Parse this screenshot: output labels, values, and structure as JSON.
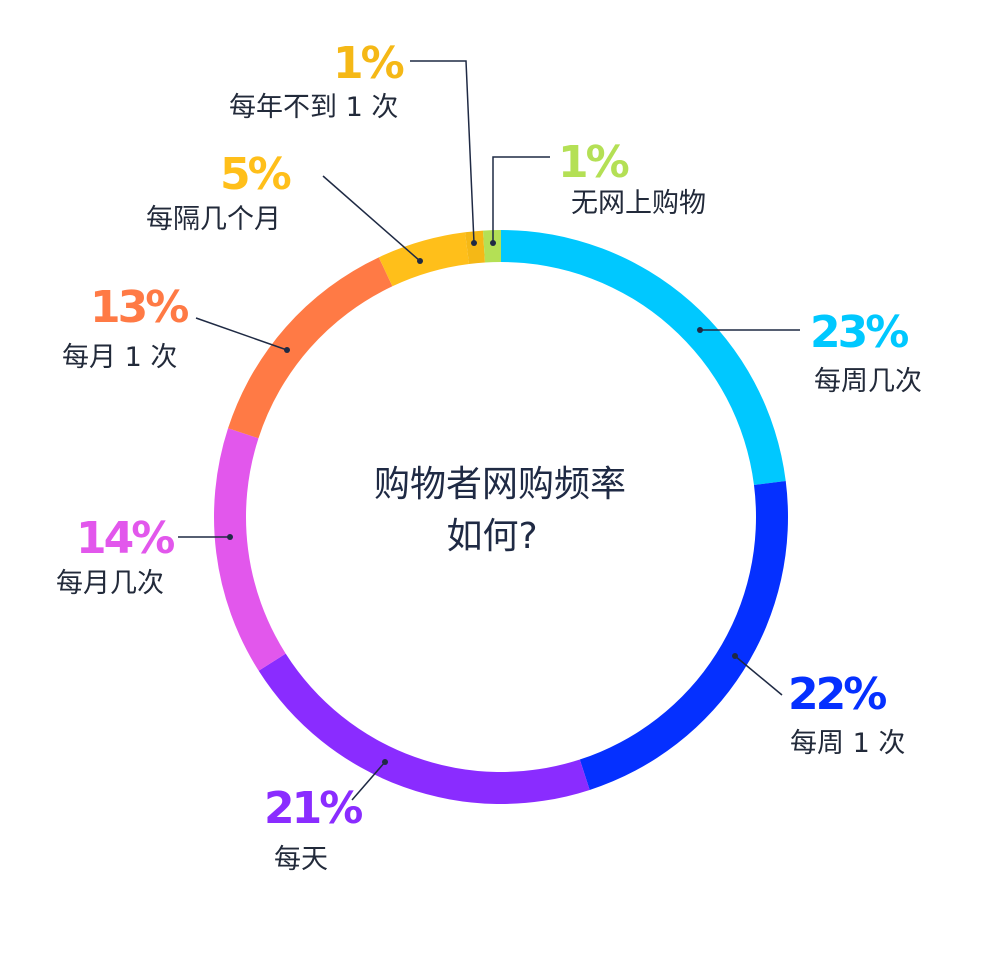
{
  "chart_data": {
    "type": "pie",
    "title_line1": "购物者网购频率",
    "title_line2": "如何?",
    "slices": [
      {
        "label": "每周几次",
        "value": 23,
        "value_text": "23%",
        "color": "#00c8ff"
      },
      {
        "label": "每周 1 次",
        "value": 22,
        "value_text": "22%",
        "color": "#0530ff"
      },
      {
        "label": "每天",
        "value": 21,
        "value_text": "21%",
        "color": "#8a2cff"
      },
      {
        "label": "每月几次",
        "value": 14,
        "value_text": "14%",
        "color": "#e257ec"
      },
      {
        "label": "每月 1 次",
        "value": 13,
        "value_text": "13%",
        "color": "#ff7a45"
      },
      {
        "label": "每隔几个月",
        "value": 5,
        "value_text": "5%",
        "color": "#ffbf1a"
      },
      {
        "label": "每年不到 1 次",
        "value": 1,
        "value_text": "1%",
        "color": "#f5b816"
      },
      {
        "label": "无网上购物",
        "value": 1,
        "value_text": "1%",
        "color": "#b4e055"
      }
    ]
  }
}
